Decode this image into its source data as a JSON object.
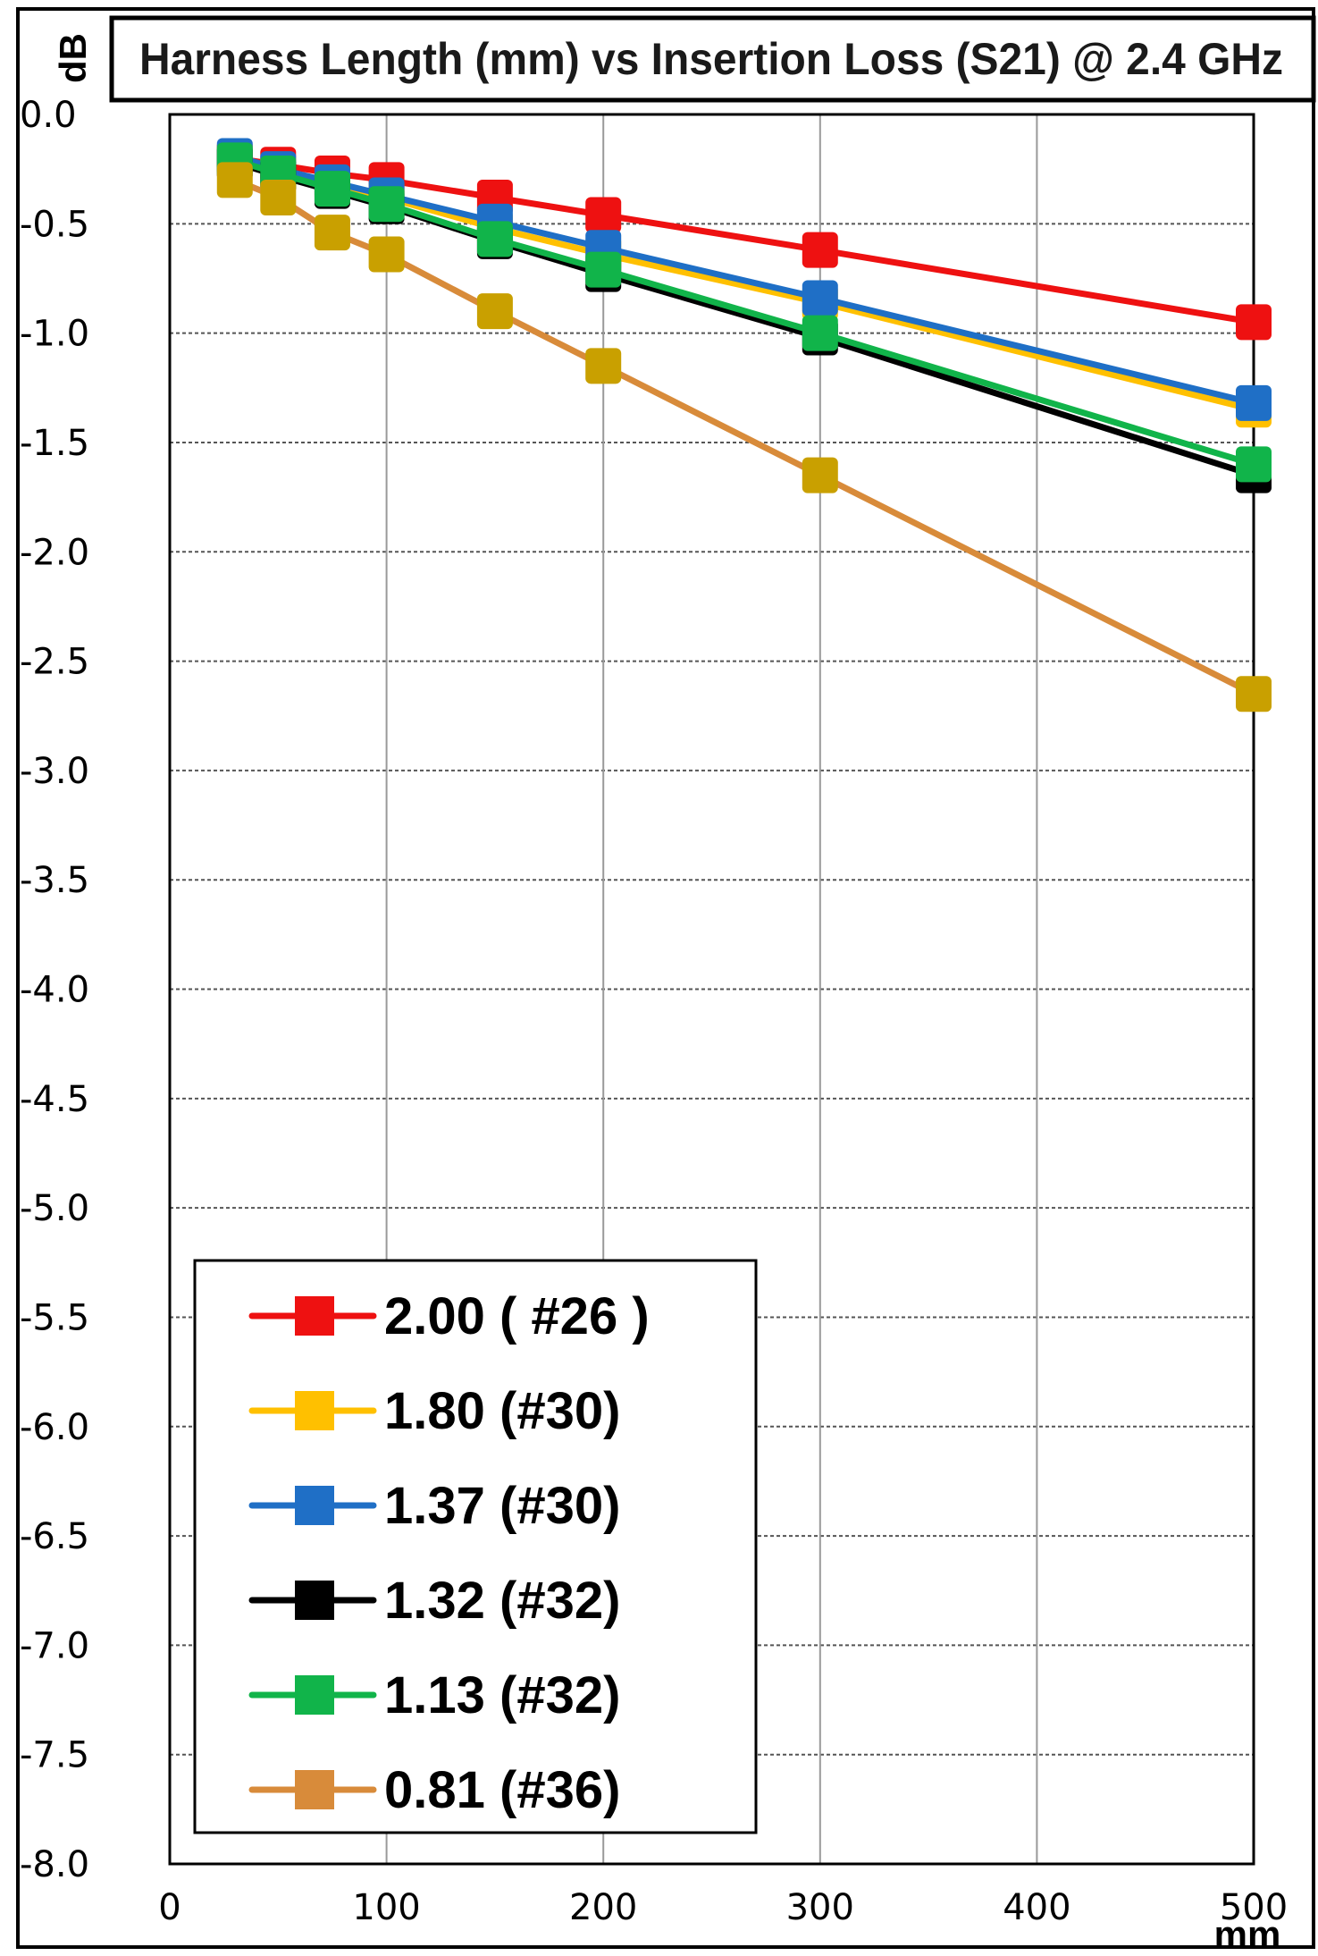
{
  "chart_data": {
    "type": "line",
    "title": "Harness Length (mm) vs Insertion Loss (S21) @ 2.4 GHz",
    "xlabel": "mm",
    "ylabel": "dB",
    "xlim": [
      0,
      500
    ],
    "ylim": [
      -8.0,
      0.0
    ],
    "x_ticks": [
      "0",
      "100",
      "200",
      "300",
      "400",
      "500"
    ],
    "y_ticks": [
      "0.0",
      "-0.5",
      "-1.0",
      "-1.5",
      "-2.0",
      "-2.5",
      "-3.0",
      "-3.5",
      "-4.0",
      "-4.5",
      "-5.0",
      "-5.5",
      "-6.0",
      "-6.5",
      "-7.0",
      "-7.5",
      "-8.0"
    ],
    "grid": true,
    "legend_position": "bottom-left",
    "x": [
      30,
      50,
      75,
      100,
      150,
      200,
      300,
      500
    ],
    "series": [
      {
        "name": "2.00 ( #26 )",
        "color": "#ee1111",
        "values": [
          -0.2,
          -0.23,
          -0.27,
          -0.3,
          -0.38,
          -0.46,
          -0.62,
          -0.95
        ]
      },
      {
        "name": "1.80 (#30)",
        "color": "#ffc000",
        "values": [
          -0.2,
          -0.26,
          -0.32,
          -0.38,
          -0.52,
          -0.64,
          -0.86,
          -1.35
        ]
      },
      {
        "name": "1.37 (#30)",
        "color": "#1f6fc6",
        "values": [
          -0.19,
          -0.25,
          -0.31,
          -0.37,
          -0.49,
          -0.61,
          -0.84,
          -1.32
        ]
      },
      {
        "name": "1.32 (#32)",
        "color": "#000000",
        "values": [
          -0.22,
          -0.28,
          -0.35,
          -0.42,
          -0.58,
          -0.73,
          -1.02,
          -1.65
        ]
      },
      {
        "name": "1.13 (#32)",
        "color": "#11b44a",
        "values": [
          -0.21,
          -0.27,
          -0.34,
          -0.41,
          -0.57,
          -0.71,
          -1.0,
          -1.6
        ]
      },
      {
        "name": "0.81 (#36)",
        "color": "#d88b3a",
        "marker_color": "#c9a000",
        "values": [
          -0.3,
          -0.38,
          -0.54,
          -0.64,
          -0.9,
          -1.15,
          -1.65,
          -2.65
        ]
      }
    ]
  }
}
